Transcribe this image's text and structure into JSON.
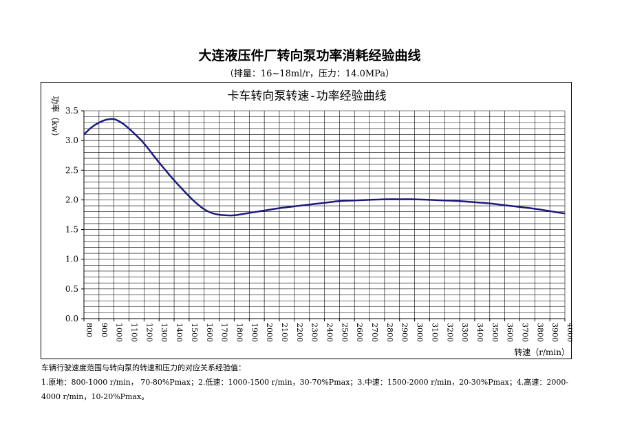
{
  "document": {
    "title": "大连液压件厂转向泵功率消耗经验曲线",
    "subtitle": "（排量：16~18ml/r，压力：14.0MPa）",
    "notes_heading": "车辆行驶速度范围与转向泵的转速和压力的对应关系经验值：",
    "notes_body": "1.原地：800-1000 r/min， 70-80%Pmax；2.低速：1000-1500 r/min，30-70%Pmax；3.中速：1500-2000 r/min，20-30%Pmax；4.高速：2000-4000 r/min，10-20%Pmax。"
  },
  "chart_data": {
    "type": "line",
    "title": "卡车转向泵转速-功率经验曲线",
    "xlabel": "转速（r/min）",
    "ylabel": "功率（kw）",
    "xlim": [
      800,
      4000
    ],
    "ylim": [
      0,
      3.5
    ],
    "x_ticks": [
      "800",
      "900",
      "1000",
      "1100",
      "1200",
      "1300",
      "1400",
      "1500",
      "1600",
      "1700",
      "1800",
      "1900",
      "2000",
      "2100",
      "2200",
      "2300",
      "2400",
      "2500",
      "2600",
      "2700",
      "2800",
      "2900",
      "3000",
      "3100",
      "3200",
      "3300",
      "3400",
      "3500",
      "3600",
      "3700",
      "3800",
      "3900",
      "4000"
    ],
    "y_ticks": [
      "0.0",
      "0.5",
      "1.0",
      "1.5",
      "2.0",
      "2.5",
      "3.0",
      "3.5"
    ],
    "grid": true,
    "legend": "none",
    "series": [
      {
        "color": "#1a1a80",
        "x": [
          800,
          850,
          900,
          950,
          1000,
          1050,
          1100,
          1150,
          1200,
          1300,
          1400,
          1500,
          1550,
          1600,
          1650,
          1700,
          1750,
          1800,
          1900,
          2000,
          2100,
          2200,
          2300,
          2400,
          2500,
          2600,
          2700,
          2800,
          2900,
          3000,
          3100,
          3200,
          3300,
          3400,
          3500,
          3600,
          3700,
          3800,
          3900,
          4000
        ],
        "y": [
          3.1,
          3.22,
          3.3,
          3.35,
          3.36,
          3.3,
          3.2,
          3.08,
          2.95,
          2.63,
          2.33,
          2.06,
          1.94,
          1.84,
          1.78,
          1.75,
          1.74,
          1.74,
          1.78,
          1.82,
          1.86,
          1.89,
          1.92,
          1.95,
          1.98,
          1.99,
          2.0,
          2.01,
          2.01,
          2.01,
          2.0,
          1.99,
          1.98,
          1.96,
          1.94,
          1.91,
          1.88,
          1.85,
          1.81,
          1.77
        ]
      }
    ]
  }
}
